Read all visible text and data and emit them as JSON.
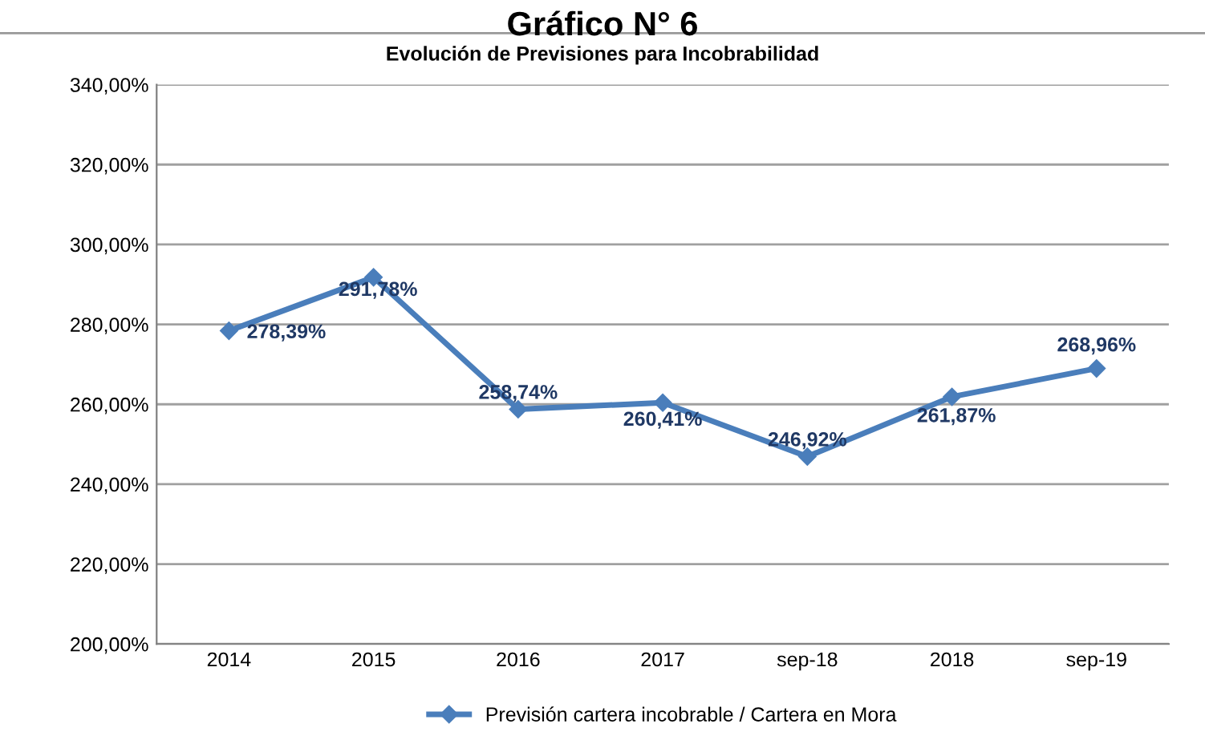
{
  "chart_data": {
    "type": "line",
    "title": "Gráfico N° 6",
    "subtitle": "Evolución de Previsiones para Incobrabilidad",
    "categories": [
      "2014",
      "2015",
      "2016",
      "2017",
      "sep-18",
      "2018",
      "sep-19"
    ],
    "series": [
      {
        "name": "Previsión cartera incobrable / Cartera en Mora",
        "color": "#4a7ebb",
        "values": [
          278.39,
          291.78,
          258.74,
          260.41,
          246.92,
          261.87,
          268.96
        ],
        "value_labels": [
          "278,39%",
          "291,78%",
          "258,74%",
          "260,41%",
          "246,92%",
          "261,87%",
          "268,96%"
        ]
      }
    ],
    "ylim": [
      200,
      340
    ],
    "yticks": [
      {
        "value": 200,
        "label": "200,00%"
      },
      {
        "value": 220,
        "label": "220,00%"
      },
      {
        "value": 240,
        "label": "240,00%"
      },
      {
        "value": 260,
        "label": "260,00%"
      },
      {
        "value": 280,
        "label": "280,00%"
      },
      {
        "value": 300,
        "label": "300,00%"
      },
      {
        "value": 320,
        "label": "320,00%"
      },
      {
        "value": 340,
        "label": "340,00%"
      }
    ],
    "grid": "y",
    "legend": "bottom",
    "marker": "diamond",
    "line_style": "solid"
  }
}
